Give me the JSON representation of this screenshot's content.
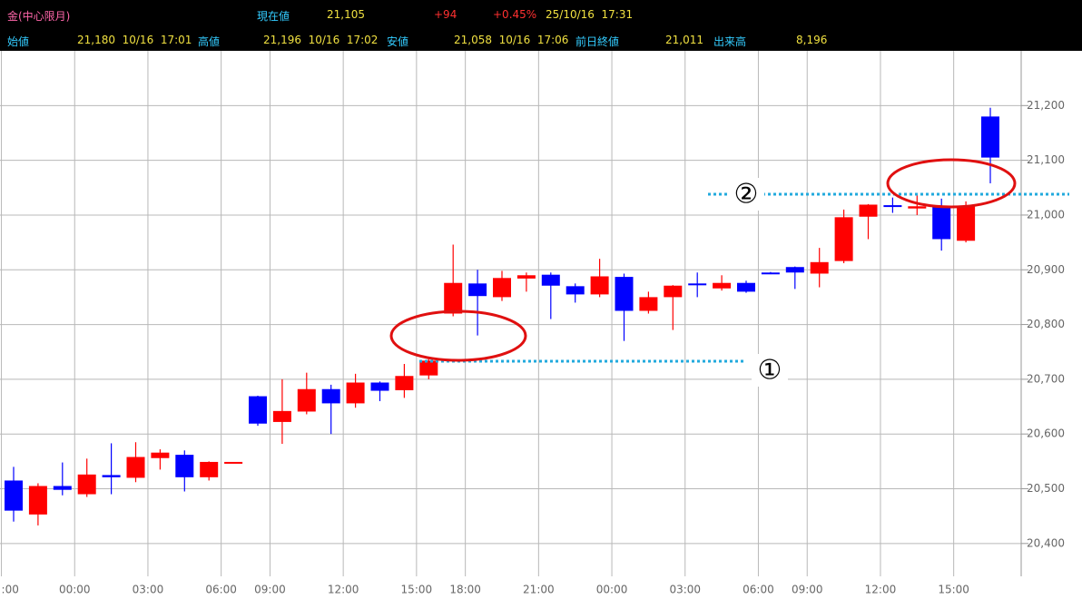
{
  "header": {
    "row1": [
      "金(中心限月)",
      "現在値",
      "21,105",
      "+94",
      "+0.45%",
      "25/10/16  17:31"
    ],
    "row2": [
      "始値",
      "21,180  10/16  17:01",
      "高値",
      "21,196  10/16  17:02",
      "安値",
      "21,058  10/16  17:06",
      "前日終値",
      "21,011",
      "出来高",
      "8,196"
    ]
  },
  "chart_data": {
    "type": "candlestick",
    "categories": [
      ":00",
      null,
      null,
      "00:00",
      null,
      null,
      "03:00",
      null,
      null,
      "06:00",
      null,
      "09:00",
      null,
      null,
      "12:00",
      null,
      null,
      "15:00",
      null,
      "18:00",
      null,
      null,
      "21:00",
      null,
      null,
      "00:00",
      null,
      null,
      "03:00",
      null,
      null,
      "06:00",
      null,
      "09:00",
      null,
      null,
      "12:00",
      null,
      null,
      "15:00",
      null
    ],
    "open": [
      20515,
      20453,
      20505,
      20490,
      20525,
      20520,
      20556,
      20562,
      20521,
      20549,
      20669,
      20622,
      20641,
      20682,
      20656,
      20694,
      20680,
      20707,
      20820,
      20875,
      20850,
      20884,
      20891,
      20870,
      20855,
      20887,
      20825,
      20850,
      20875,
      20866,
      20876,
      20895,
      20905,
      20893,
      20916,
      20997,
      21018,
      21012,
      21016,
      20953,
      21180
    ],
    "high": [
      20540,
      20510,
      20548,
      20555,
      20583,
      20585,
      20572,
      20570,
      20550,
      20549,
      20670,
      20700,
      20712,
      20690,
      20710,
      20696,
      20728,
      20738,
      20946,
      20900,
      20898,
      20895,
      20895,
      20875,
      20920,
      20893,
      20860,
      20872,
      20895,
      20890,
      20880,
      20896,
      20906,
      20940,
      21010,
      21020,
      21032,
      21040,
      21030,
      21025,
      21196
    ],
    "low": [
      20440,
      20433,
      20488,
      20485,
      20490,
      20512,
      20535,
      20495,
      20515,
      20549,
      20615,
      20582,
      20636,
      20600,
      20648,
      20660,
      20666,
      20700,
      20815,
      20780,
      20843,
      20860,
      20810,
      20840,
      20850,
      20770,
      20820,
      20790,
      20850,
      20862,
      20858,
      20892,
      20865,
      20868,
      20912,
      20956,
      21004,
      21000,
      20935,
      20950,
      21058
    ],
    "close": [
      20460,
      20505,
      20498,
      20526,
      20521,
      20558,
      20566,
      20521,
      20549,
      20549,
      20619,
      20642,
      20682,
      20656,
      20694,
      20679,
      20706,
      20734,
      20876,
      20852,
      20885,
      20890,
      20871,
      20855,
      20888,
      20825,
      20850,
      20871,
      20874,
      20876,
      20860,
      20893,
      20895,
      20914,
      20996,
      21019,
      21015,
      21016,
      20956,
      21016,
      21105
    ],
    "up_color": "#ff0000",
    "down_color": "#0000ff",
    "ylim": [
      20340,
      21300
    ],
    "yticks": [
      {
        "value": 20400,
        "label": "20,400"
      },
      {
        "value": 20500,
        "label": "20,500"
      },
      {
        "value": 20600,
        "label": "20,600"
      },
      {
        "value": 20700,
        "label": "20,700"
      },
      {
        "value": 20800,
        "label": "20,800"
      },
      {
        "value": 20900,
        "label": "20,900"
      },
      {
        "value": 21000,
        "label": "21,000"
      },
      {
        "value": 21100,
        "label": "21,100"
      },
      {
        "value": 21200,
        "label": "21,200"
      }
    ],
    "grid": true,
    "annotations": [
      "①",
      "②"
    ]
  }
}
